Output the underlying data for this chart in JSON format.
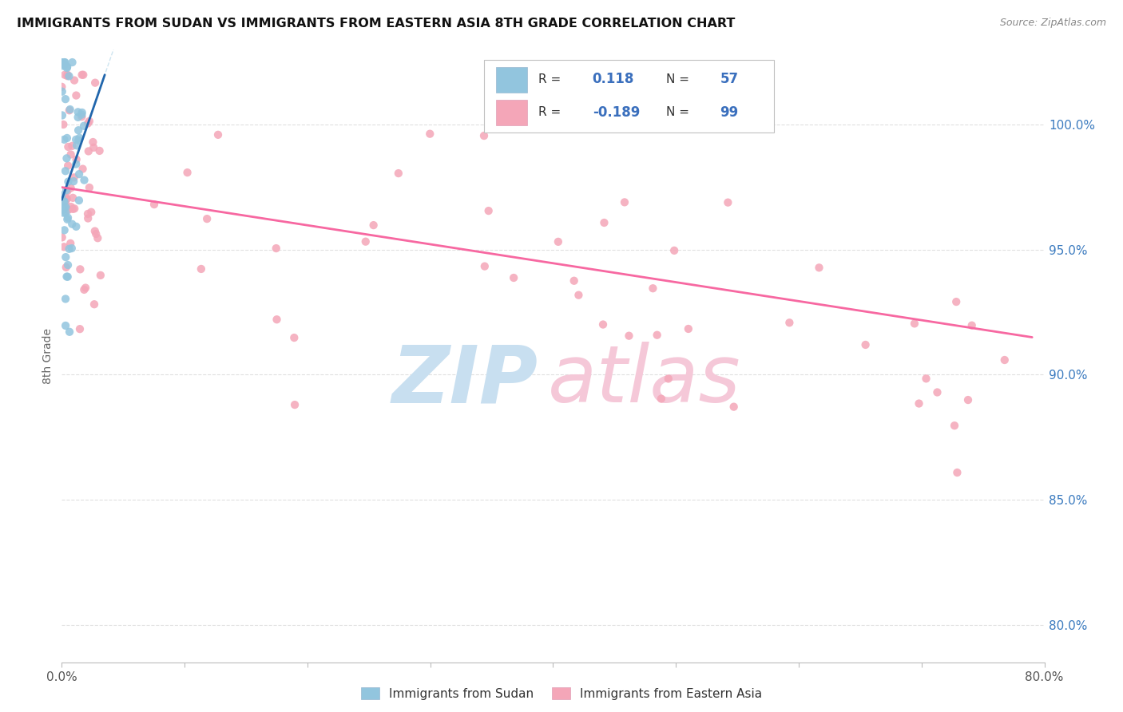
{
  "title": "IMMIGRANTS FROM SUDAN VS IMMIGRANTS FROM EASTERN ASIA 8TH GRADE CORRELATION CHART",
  "source": "Source: ZipAtlas.com",
  "ylabel": "8th Grade",
  "color_blue": "#92c5de",
  "color_pink": "#f4a6b8",
  "color_blue_line": "#2166ac",
  "color_pink_line": "#f768a1",
  "color_blue_dashed": "#92c5de",
  "legend_R1": "0.118",
  "legend_N1": "57",
  "legend_R2": "-0.189",
  "legend_N2": "99",
  "legend_color": "#3a6fbd",
  "legend_color2": "#e0507a",
  "xlim": [
    0.0,
    80.0
  ],
  "ylim": [
    78.5,
    103.0
  ],
  "ytick_positions": [
    80.0,
    85.0,
    90.0,
    95.0,
    100.0
  ],
  "ytick_labels": [
    "80.0%",
    "85.0%",
    "90.0%",
    "95.0%",
    "100.0%"
  ],
  "xtick_positions": [
    0.0,
    10.0,
    20.0,
    30.0,
    40.0,
    50.0,
    60.0,
    70.0,
    80.0
  ],
  "xtick_labels": [
    "0.0%",
    "",
    "",
    "",
    "",
    "",
    "",
    "",
    "80.0%"
  ]
}
